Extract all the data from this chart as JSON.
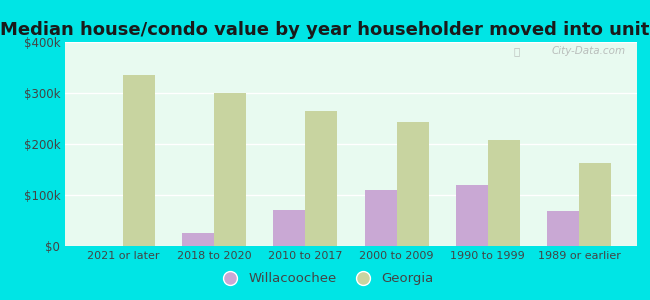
{
  "title": "Median house/condo value by year householder moved into unit",
  "categories": [
    "2021 or later",
    "2018 to 2020",
    "2010 to 2017",
    "2000 to 2009",
    "1990 to 1999",
    "1989 or earlier"
  ],
  "willacoochee": [
    0,
    25000,
    70000,
    110000,
    120000,
    68000
  ],
  "georgia": [
    335000,
    300000,
    265000,
    243000,
    207000,
    163000
  ],
  "willacoochee_color": "#c9a8d4",
  "georgia_color": "#c8d4a0",
  "background_color": "#e8faf0",
  "outer_background": "#00e5e5",
  "ylim": [
    0,
    400000
  ],
  "yticks": [
    0,
    100000,
    200000,
    300000,
    400000
  ],
  "ytick_labels": [
    "$0",
    "$100k",
    "$200k",
    "$300k",
    "$400k"
  ],
  "watermark": "City-Data.com",
  "legend_willacoochee": "Willacoochee",
  "legend_georgia": "Georgia",
  "title_fontsize": 13,
  "bar_width": 0.35,
  "grid_color": "#ffffff",
  "axis_label_color": "#444444"
}
